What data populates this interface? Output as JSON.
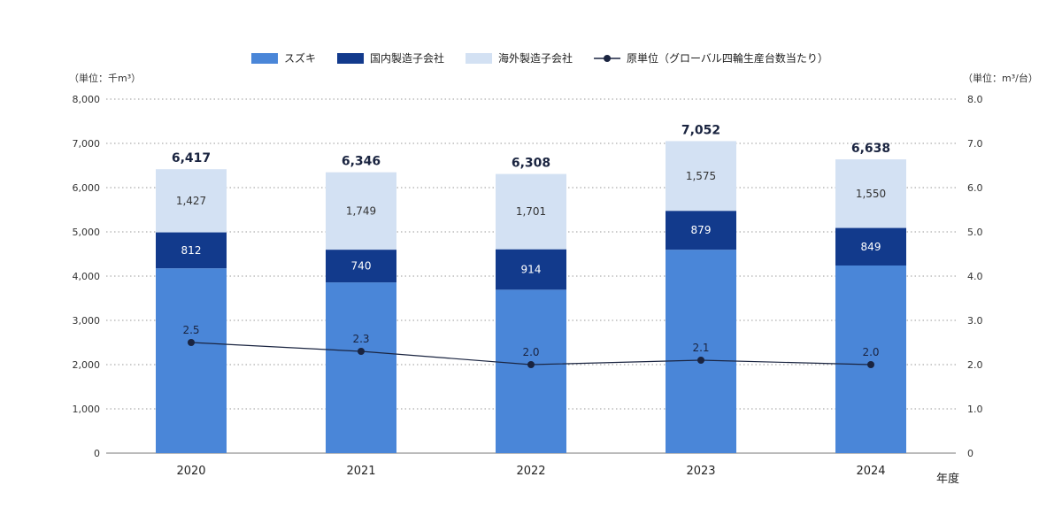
{
  "chart_data": {
    "type": "bar",
    "stacked": true,
    "categories": [
      "2020",
      "2021",
      "2022",
      "2023",
      "2024"
    ],
    "series": [
      {
        "name": "スズキ",
        "values": [
          4177,
          3858,
          3693,
          4597,
          4240
        ],
        "color": "#4a86d8",
        "label_color": "#ffffff"
      },
      {
        "name": "国内製造子会社",
        "values": [
          812,
          740,
          914,
          879,
          849
        ],
        "color": "#123a8c",
        "label_color": "#ffffff"
      },
      {
        "name": "海外製造子会社",
        "values": [
          1427,
          1749,
          1701,
          1575,
          1550
        ],
        "color": "#d3e1f3",
        "label_color": "#333333"
      }
    ],
    "totals": [
      6417,
      6346,
      6308,
      7052,
      6638
    ],
    "line_series": {
      "name": "原単位（グローバル四輪生産台数当たり）",
      "values": [
        2.5,
        2.3,
        2.0,
        2.1,
        2.0
      ],
      "axis": "right",
      "color": "#1a2440"
    },
    "ylabel_left": "（単位：千m³）",
    "ylabel_right": "（単位：m³/台）",
    "xlabel": "年度",
    "ylim_left": [
      0,
      8000
    ],
    "ylim_right": [
      0,
      8.0
    ],
    "yticks_left": [
      "0",
      "1,000",
      "2,000",
      "3,000",
      "4,000",
      "5,000",
      "6,000",
      "7,000",
      "8,000"
    ],
    "yticks_right": [
      "0",
      "1.0",
      "2.0",
      "3.0",
      "4.0",
      "5.0",
      "6.0",
      "7.0",
      "8.0"
    ],
    "grid": "dotted",
    "legend_position": "top-center"
  }
}
